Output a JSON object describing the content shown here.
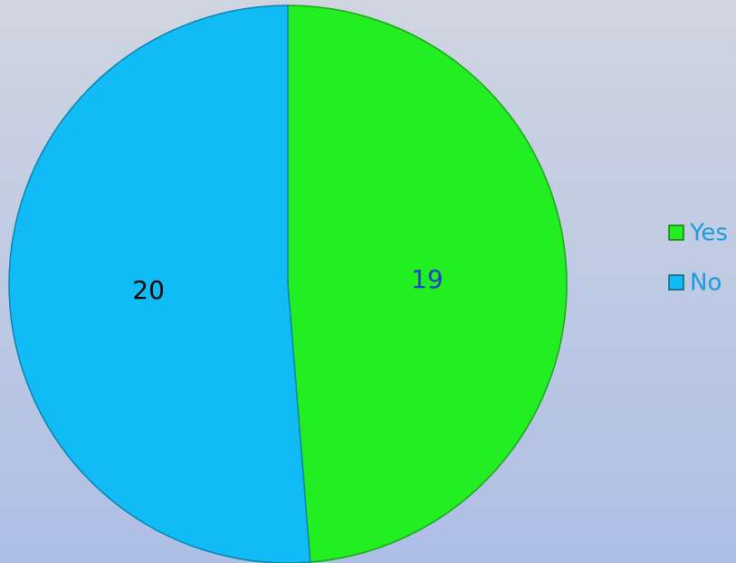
{
  "chart_data": {
    "type": "pie",
    "categories": [
      "Yes",
      "No"
    ],
    "values": [
      19,
      20
    ],
    "colors": [
      "#22ee22",
      "#11bbf5"
    ],
    "legend": "right"
  }
}
